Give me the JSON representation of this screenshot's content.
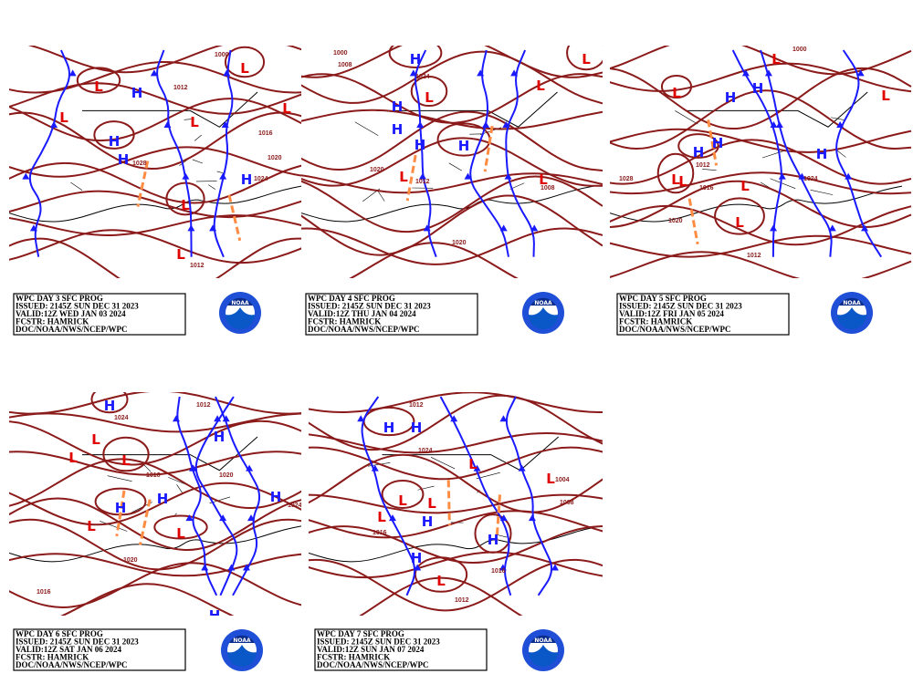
{
  "panels": [
    {
      "info": [
        "WPC DAY 3 SFC PROG",
        "ISSUED: 2145Z SUN DEC 31 2023",
        "VALID:12Z WED JAN 03 2024",
        "FCSTR: HAMRICK",
        "DOC/NOAA/NWS/NCEP/WPC"
      ],
      "logo": "NOAA",
      "centers": [
        "L",
        "H",
        "L",
        "H",
        "H",
        "L",
        "L",
        "L",
        "H",
        "L",
        "L"
      ],
      "isobars": [
        "1000",
        "1012",
        "1016",
        "1020",
        "1028",
        "1024",
        "1012"
      ]
    },
    {
      "info": [
        "WPC DAY 4 SFC PROG",
        "ISSUED: 2145Z SUN DEC 31 2023",
        "VALID:12Z THU JAN 04 2024",
        "FCSTR: HAMRICK",
        "DOC/NOAA/NWS/NCEP/WPC"
      ],
      "logo": "NOAA",
      "centers": [
        "H",
        "H",
        "H",
        "L",
        "L",
        "H",
        "H",
        "L",
        "L",
        "L"
      ],
      "isobars": [
        "1000",
        "1008",
        "1020",
        "1012",
        "1020",
        "1008",
        "1024"
      ]
    },
    {
      "info": [
        "WPC DAY 5 SFC PROG",
        "ISSUED: 2145Z SUN DEC 31 2023",
        "VALID:12Z FRI JAN 05 2024",
        "FCSTR: HAMRICK",
        "DOC/NOAA/NWS/NCEP/WPC"
      ],
      "logo": "NOAA",
      "centers": [
        "L",
        "H",
        "H",
        "H",
        "H",
        "L",
        "L",
        "L",
        "H",
        "L",
        "L",
        "L"
      ],
      "isobars": [
        "1000",
        "1028",
        "1020",
        "1016",
        "1012",
        "1024",
        "1012"
      ]
    },
    {
      "info": [
        "WPC DAY 6 SFC PROG",
        "ISSUED: 2145Z SUN DEC 31 2023",
        "VALID:12Z SAT JAN 06 2024",
        "FCSTR: HAMRICK",
        "DOC/NOAA/NWS/NCEP/WPC"
      ],
      "logo": "NOAA",
      "centers": [
        "H",
        "L",
        "L",
        "L",
        "H",
        "H",
        "H",
        "H",
        "L",
        "L",
        "H"
      ],
      "isobars": [
        "1024",
        "1012",
        "1020",
        "1016",
        "1024",
        "1016",
        "1020"
      ]
    },
    {
      "info": [
        "WPC DAY 7 SFC PROG",
        "ISSUED: 2145Z SUN DEC 31 2023",
        "VALID:12Z SUN JAN 07 2024",
        "FCSTR: HAMRICK",
        "DOC/NOAA/NWS/NCEP/WPC"
      ],
      "logo": "NOAA",
      "centers": [
        "H",
        "H",
        "L",
        "L",
        "L",
        "H",
        "H",
        "L",
        "H",
        "L",
        "L"
      ],
      "isobars": [
        "1012",
        "1024",
        "1004",
        "1016",
        "1016",
        "1012",
        "1008"
      ]
    }
  ]
}
